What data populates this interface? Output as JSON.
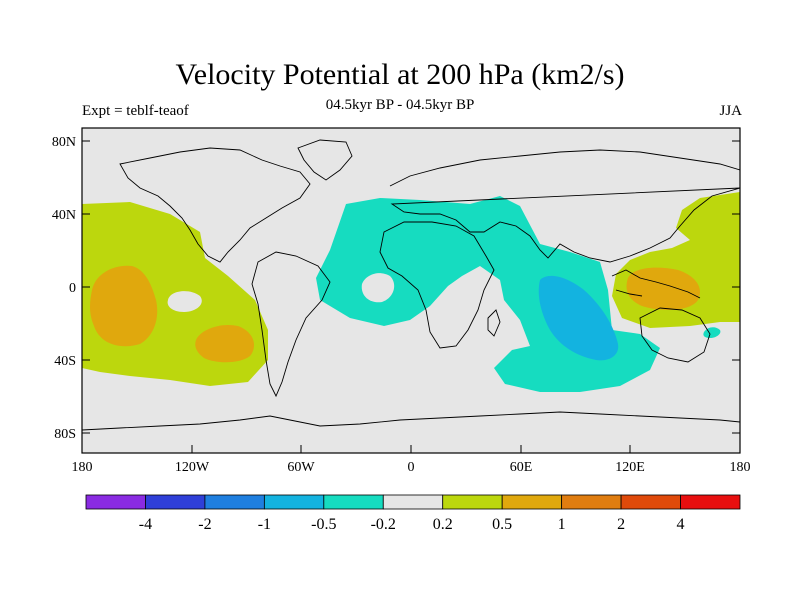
{
  "title": "Velocity Potential at 200 hPa (km2/s)",
  "subtitle": "04.5kyr BP - 04.5kyr BP",
  "left_label": "Expt = teblf-teaof",
  "right_label": "JJA",
  "lat_labels": [
    "80N",
    "40N",
    "0",
    "40S",
    "80S"
  ],
  "lon_labels": [
    "180",
    "120W",
    "60W",
    "0",
    "60E",
    "120E",
    "180"
  ],
  "colorbar": {
    "colors": [
      "#8a2be2",
      "#2f3fd8",
      "#1f7fe0",
      "#13b3e0",
      "#16dcc0",
      "#e6e6e6",
      "#bcd70d",
      "#e0a80d",
      "#e07d10",
      "#e04a0a",
      "#e80f0f"
    ],
    "labels": [
      "-4",
      "-2",
      "-1",
      "-0.5",
      "-0.2",
      "0.2",
      "0.5",
      "1",
      "2",
      "4"
    ]
  },
  "colors": {
    "background": "#e6e6e6",
    "positive_weak": "#bcd70d",
    "positive_mid": "#e0a80d",
    "negative_weak": "#16dcc0",
    "negative_mid": "#13b3e0"
  }
}
